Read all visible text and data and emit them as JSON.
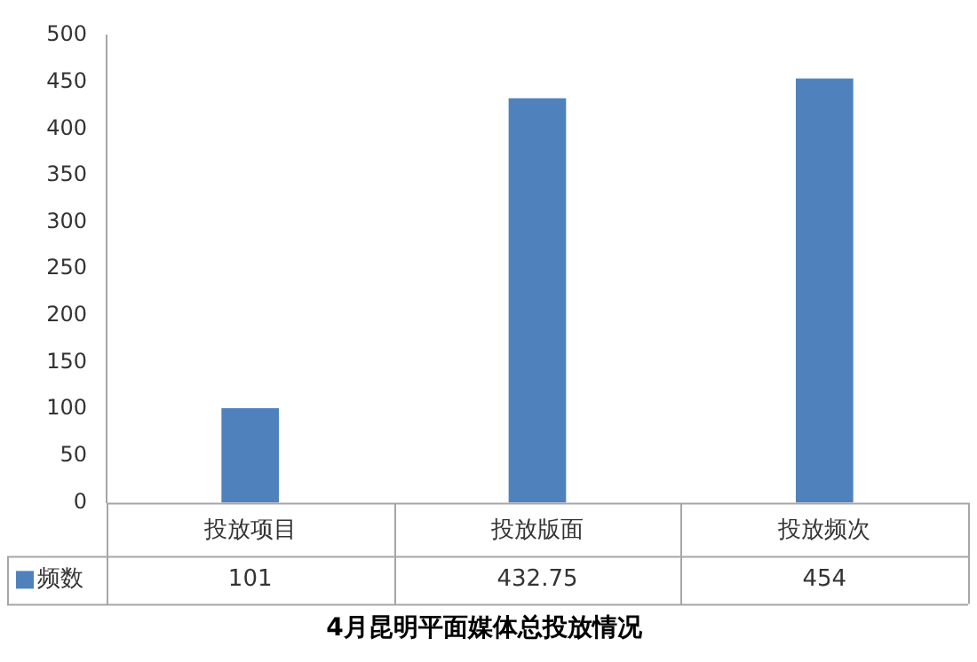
{
  "chart_data": {
    "type": "bar",
    "title": "4月昆明平面媒体总投放情况",
    "categories": [
      "投放项目",
      "投放版面",
      "投放频次"
    ],
    "series": [
      {
        "name": "频数",
        "color": "#4f81bd",
        "values": [
          101,
          432.75,
          454
        ]
      }
    ],
    "ylim": [
      0,
      500
    ],
    "yticks": [
      0,
      50,
      100,
      150,
      200,
      250,
      300,
      350,
      400,
      450,
      500
    ],
    "grid": false,
    "legend": "bottom left",
    "data_labels": true
  }
}
